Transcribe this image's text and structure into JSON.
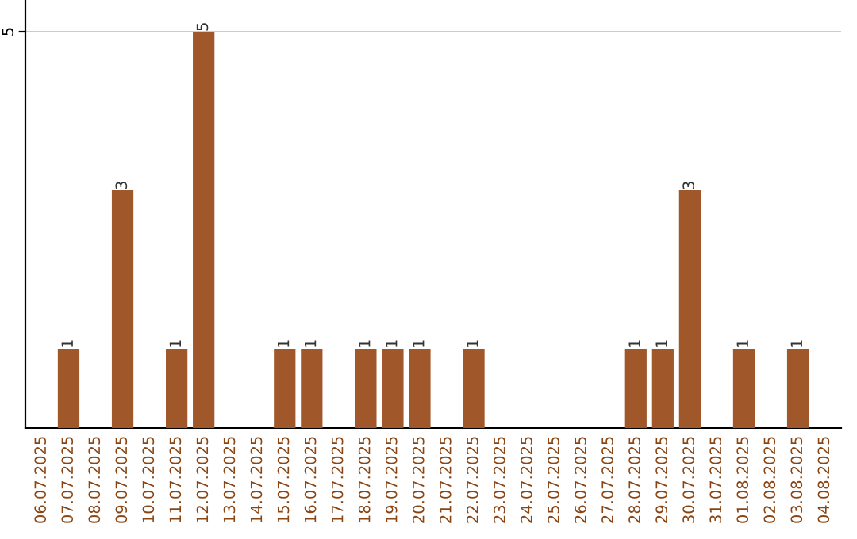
{
  "chart_data": {
    "type": "bar",
    "categories": [
      "06.07.2025",
      "07.07.2025",
      "08.07.2025",
      "09.07.2025",
      "10.07.2025",
      "11.07.2025",
      "12.07.2025",
      "13.07.2025",
      "14.07.2025",
      "15.07.2025",
      "16.07.2025",
      "17.07.2025",
      "18.07.2025",
      "19.07.2025",
      "20.07.2025",
      "21.07.2025",
      "22.07.2025",
      "23.07.2025",
      "24.07.2025",
      "25.07.2025",
      "26.07.2025",
      "27.07.2025",
      "28.07.2025",
      "29.07.2025",
      "30.07.2025",
      "31.07.2025",
      "01.08.2025",
      "02.08.2025",
      "03.08.2025",
      "04.08.2025"
    ],
    "values": [
      0,
      1,
      0,
      3,
      0,
      1,
      5,
      0,
      0,
      1,
      1,
      0,
      1,
      1,
      1,
      0,
      1,
      0,
      0,
      0,
      0,
      0,
      1,
      1,
      3,
      0,
      1,
      0,
      1,
      0
    ],
    "value_labels": [
      null,
      "1",
      null,
      "3",
      null,
      "1",
      "5",
      null,
      null,
      "1",
      "1",
      null,
      "1",
      "1",
      "1",
      null,
      "1",
      null,
      null,
      null,
      null,
      null,
      "1",
      "1",
      "3",
      null,
      "1",
      null,
      "1",
      null
    ],
    "color": "#a0582a",
    "ylim": [
      0,
      5.4
    ],
    "yticks": [
      5
    ],
    "grid": "y"
  }
}
